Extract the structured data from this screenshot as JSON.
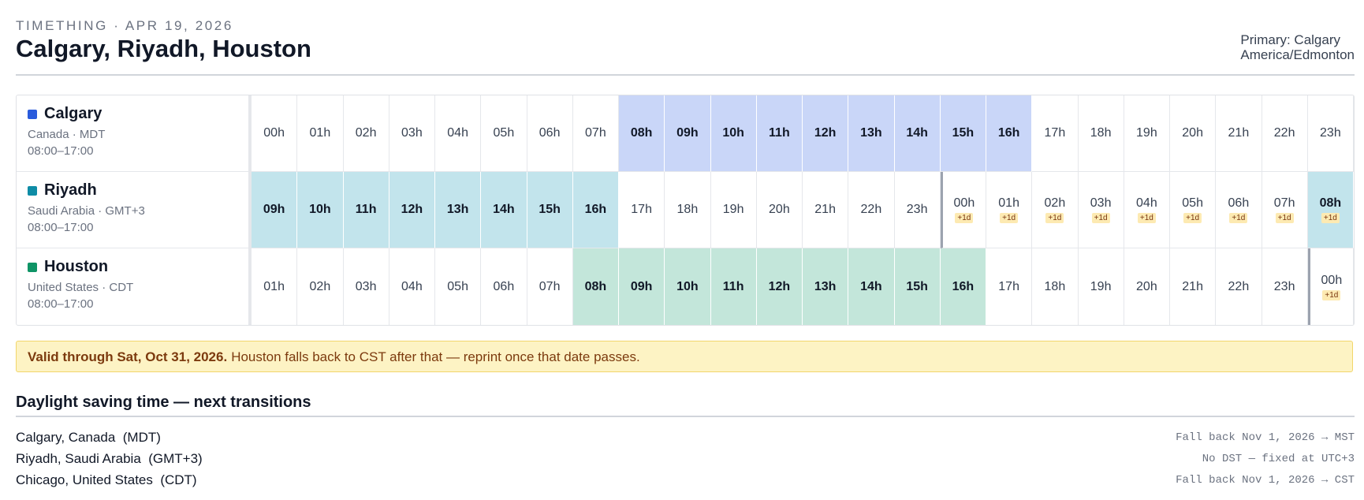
{
  "header": {
    "kicker": "TIMETHING · APR 19, 2026",
    "title": "Calgary, Riyadh, Houston",
    "primary": "Primary: Calgary",
    "primary_zone": "America/Edmonton"
  },
  "rows": [
    {
      "name": "Calgary",
      "color": "#2a5bdc",
      "highlight": "#c9d6f8",
      "region": "Canada · MDT",
      "hours": "08:00–17:00",
      "cells": [
        {
          "label": "00h"
        },
        {
          "label": "01h"
        },
        {
          "label": "02h"
        },
        {
          "label": "03h"
        },
        {
          "label": "04h"
        },
        {
          "label": "05h"
        },
        {
          "label": "06h"
        },
        {
          "label": "07h"
        },
        {
          "label": "08h",
          "work": true
        },
        {
          "label": "09h",
          "work": true
        },
        {
          "label": "10h",
          "work": true
        },
        {
          "label": "11h",
          "work": true
        },
        {
          "label": "12h",
          "work": true
        },
        {
          "label": "13h",
          "work": true
        },
        {
          "label": "14h",
          "work": true
        },
        {
          "label": "15h",
          "work": true
        },
        {
          "label": "16h",
          "work": true
        },
        {
          "label": "17h"
        },
        {
          "label": "18h"
        },
        {
          "label": "19h"
        },
        {
          "label": "20h"
        },
        {
          "label": "21h"
        },
        {
          "label": "22h"
        },
        {
          "label": "23h"
        }
      ]
    },
    {
      "name": "Riyadh",
      "color": "#0e8ca6",
      "highlight": "#c2e4ec",
      "region": "Saudi Arabia · GMT+3",
      "hours": "08:00–17:00",
      "cells": [
        {
          "label": "09h",
          "work": true
        },
        {
          "label": "10h",
          "work": true
        },
        {
          "label": "11h",
          "work": true
        },
        {
          "label": "12h",
          "work": true
        },
        {
          "label": "13h",
          "work": true
        },
        {
          "label": "14h",
          "work": true
        },
        {
          "label": "15h",
          "work": true
        },
        {
          "label": "16h",
          "work": true
        },
        {
          "label": "17h"
        },
        {
          "label": "18h"
        },
        {
          "label": "19h"
        },
        {
          "label": "20h"
        },
        {
          "label": "21h"
        },
        {
          "label": "22h"
        },
        {
          "label": "23h"
        },
        {
          "label": "00h",
          "badge": "+1d",
          "divider": true
        },
        {
          "label": "01h",
          "badge": "+1d"
        },
        {
          "label": "02h",
          "badge": "+1d"
        },
        {
          "label": "03h",
          "badge": "+1d"
        },
        {
          "label": "04h",
          "badge": "+1d"
        },
        {
          "label": "05h",
          "badge": "+1d"
        },
        {
          "label": "06h",
          "badge": "+1d"
        },
        {
          "label": "07h",
          "badge": "+1d"
        },
        {
          "label": "08h",
          "badge": "+1d",
          "work": true
        }
      ]
    },
    {
      "name": "Houston",
      "color": "#0f9466",
      "highlight": "#c3e6da",
      "region": "United States · CDT",
      "hours": "08:00–17:00",
      "cells": [
        {
          "label": "01h"
        },
        {
          "label": "02h"
        },
        {
          "label": "03h"
        },
        {
          "label": "04h"
        },
        {
          "label": "05h"
        },
        {
          "label": "06h"
        },
        {
          "label": "07h"
        },
        {
          "label": "08h",
          "work": true
        },
        {
          "label": "09h",
          "work": true
        },
        {
          "label": "10h",
          "work": true
        },
        {
          "label": "11h",
          "work": true
        },
        {
          "label": "12h",
          "work": true
        },
        {
          "label": "13h",
          "work": true
        },
        {
          "label": "14h",
          "work": true
        },
        {
          "label": "15h",
          "work": true
        },
        {
          "label": "16h",
          "work": true
        },
        {
          "label": "17h"
        },
        {
          "label": "18h"
        },
        {
          "label": "19h"
        },
        {
          "label": "20h"
        },
        {
          "label": "21h"
        },
        {
          "label": "22h"
        },
        {
          "label": "23h"
        },
        {
          "label": "00h",
          "badge": "+1d",
          "divider": true
        }
      ]
    }
  ],
  "notice": {
    "bold": "Valid through Sat, Oct 31, 2026.",
    "text": "Houston falls back to CST after that — reprint once that date passes."
  },
  "dst": {
    "title": "Daylight saving time — next transitions",
    "rows": [
      {
        "place": "Calgary, Canada  (MDT)",
        "status": "Fall back Nov 1, 2026 → MST"
      },
      {
        "place": "Riyadh, Saudi Arabia  (GMT+3)",
        "status": "No DST — fixed at UTC+3"
      },
      {
        "place": "Chicago, United States  (CDT)",
        "status": "Fall back Nov 1, 2026 → CST"
      }
    ]
  }
}
